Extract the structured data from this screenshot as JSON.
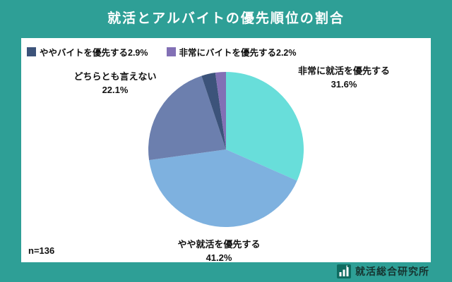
{
  "header": {
    "title": "就活とアルバイトの優先順位の割合"
  },
  "legend": [
    {
      "label": "ややバイトを優先する2.9%",
      "color": "#3C537A"
    },
    {
      "label": "非常にバイトを優先する2.2%",
      "color": "#8270B5"
    }
  ],
  "chart_data": {
    "type": "pie",
    "title": "就活とアルバイトの優先順位の割合",
    "unit": "%",
    "sample_size": 136,
    "direction": "clockwise",
    "start_angle": "12-oclock",
    "legend_position": "top-left",
    "slices": [
      {
        "label": "非常に就活を優先する",
        "value": 31.6,
        "color": "#68DEDA"
      },
      {
        "label": "やや就活を優先する",
        "value": 41.2,
        "color": "#7EB1DF"
      },
      {
        "label": "どちらとも言えない",
        "value": 22.1,
        "color": "#6C7FAE"
      },
      {
        "label": "ややバイトを優先する",
        "value": 2.9,
        "color": "#3C537A"
      },
      {
        "label": "非常にバイトを優先する",
        "value": 2.2,
        "color": "#8270B5"
      }
    ]
  },
  "callouts": {
    "very_job": {
      "line1": "非常に就活を優先する",
      "line2": "31.6%"
    },
    "neutral": {
      "line1": "どちらとも言えない",
      "line2": "22.1%"
    },
    "somewhat_job": {
      "line1": "やや就活を優先する",
      "line2": "41.2%"
    }
  },
  "footer": {
    "sample": "n=136",
    "logo_text": "就活総合研究所"
  },
  "colors": {
    "background": "#2E9F96",
    "card": "#FFFFFF"
  }
}
